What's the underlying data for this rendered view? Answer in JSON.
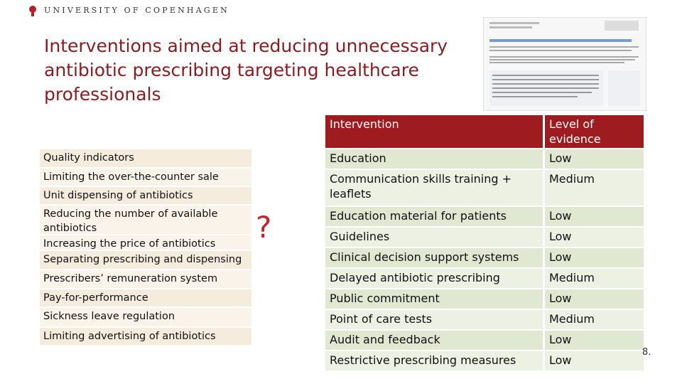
{
  "header": {
    "university": "UNIVERSITY OF COPENHAGEN"
  },
  "title": "Interventions aimed at reducing unnecessary antibiotic prescribing targeting healthcare professionals",
  "measures": [
    "Quality indicators",
    "Limiting the over-the-counter sale",
    "Unit dispensing of antibiotics",
    "Reducing the number of available antibiotics",
    "Increasing the price of antibiotics",
    "Separating prescribing and dispensing",
    "Prescribers’ remuneration system",
    "Pay-for-performance",
    "Sickness leave regulation",
    "Limiting advertising of antibiotics"
  ],
  "question_mark": "?",
  "table": {
    "columns": [
      "Intervention",
      "Level of evidence"
    ],
    "rows": [
      [
        "Education",
        "Low"
      ],
      [
        "Communication skills training + leaflets",
        "Medium"
      ],
      [
        "Education material for patients",
        "Low"
      ],
      [
        "Guidelines",
        "Low"
      ],
      [
        "Clinical decision support systems",
        "Low"
      ],
      [
        "Delayed antibiotic prescribing",
        "Medium"
      ],
      [
        "Public commitment",
        "Low"
      ],
      [
        "Point of care tests",
        "Medium"
      ],
      [
        "Audit and feedback",
        "Low"
      ],
      [
        "Restrictive prescribing measures",
        "Low"
      ]
    ]
  },
  "slide_number": "8."
}
